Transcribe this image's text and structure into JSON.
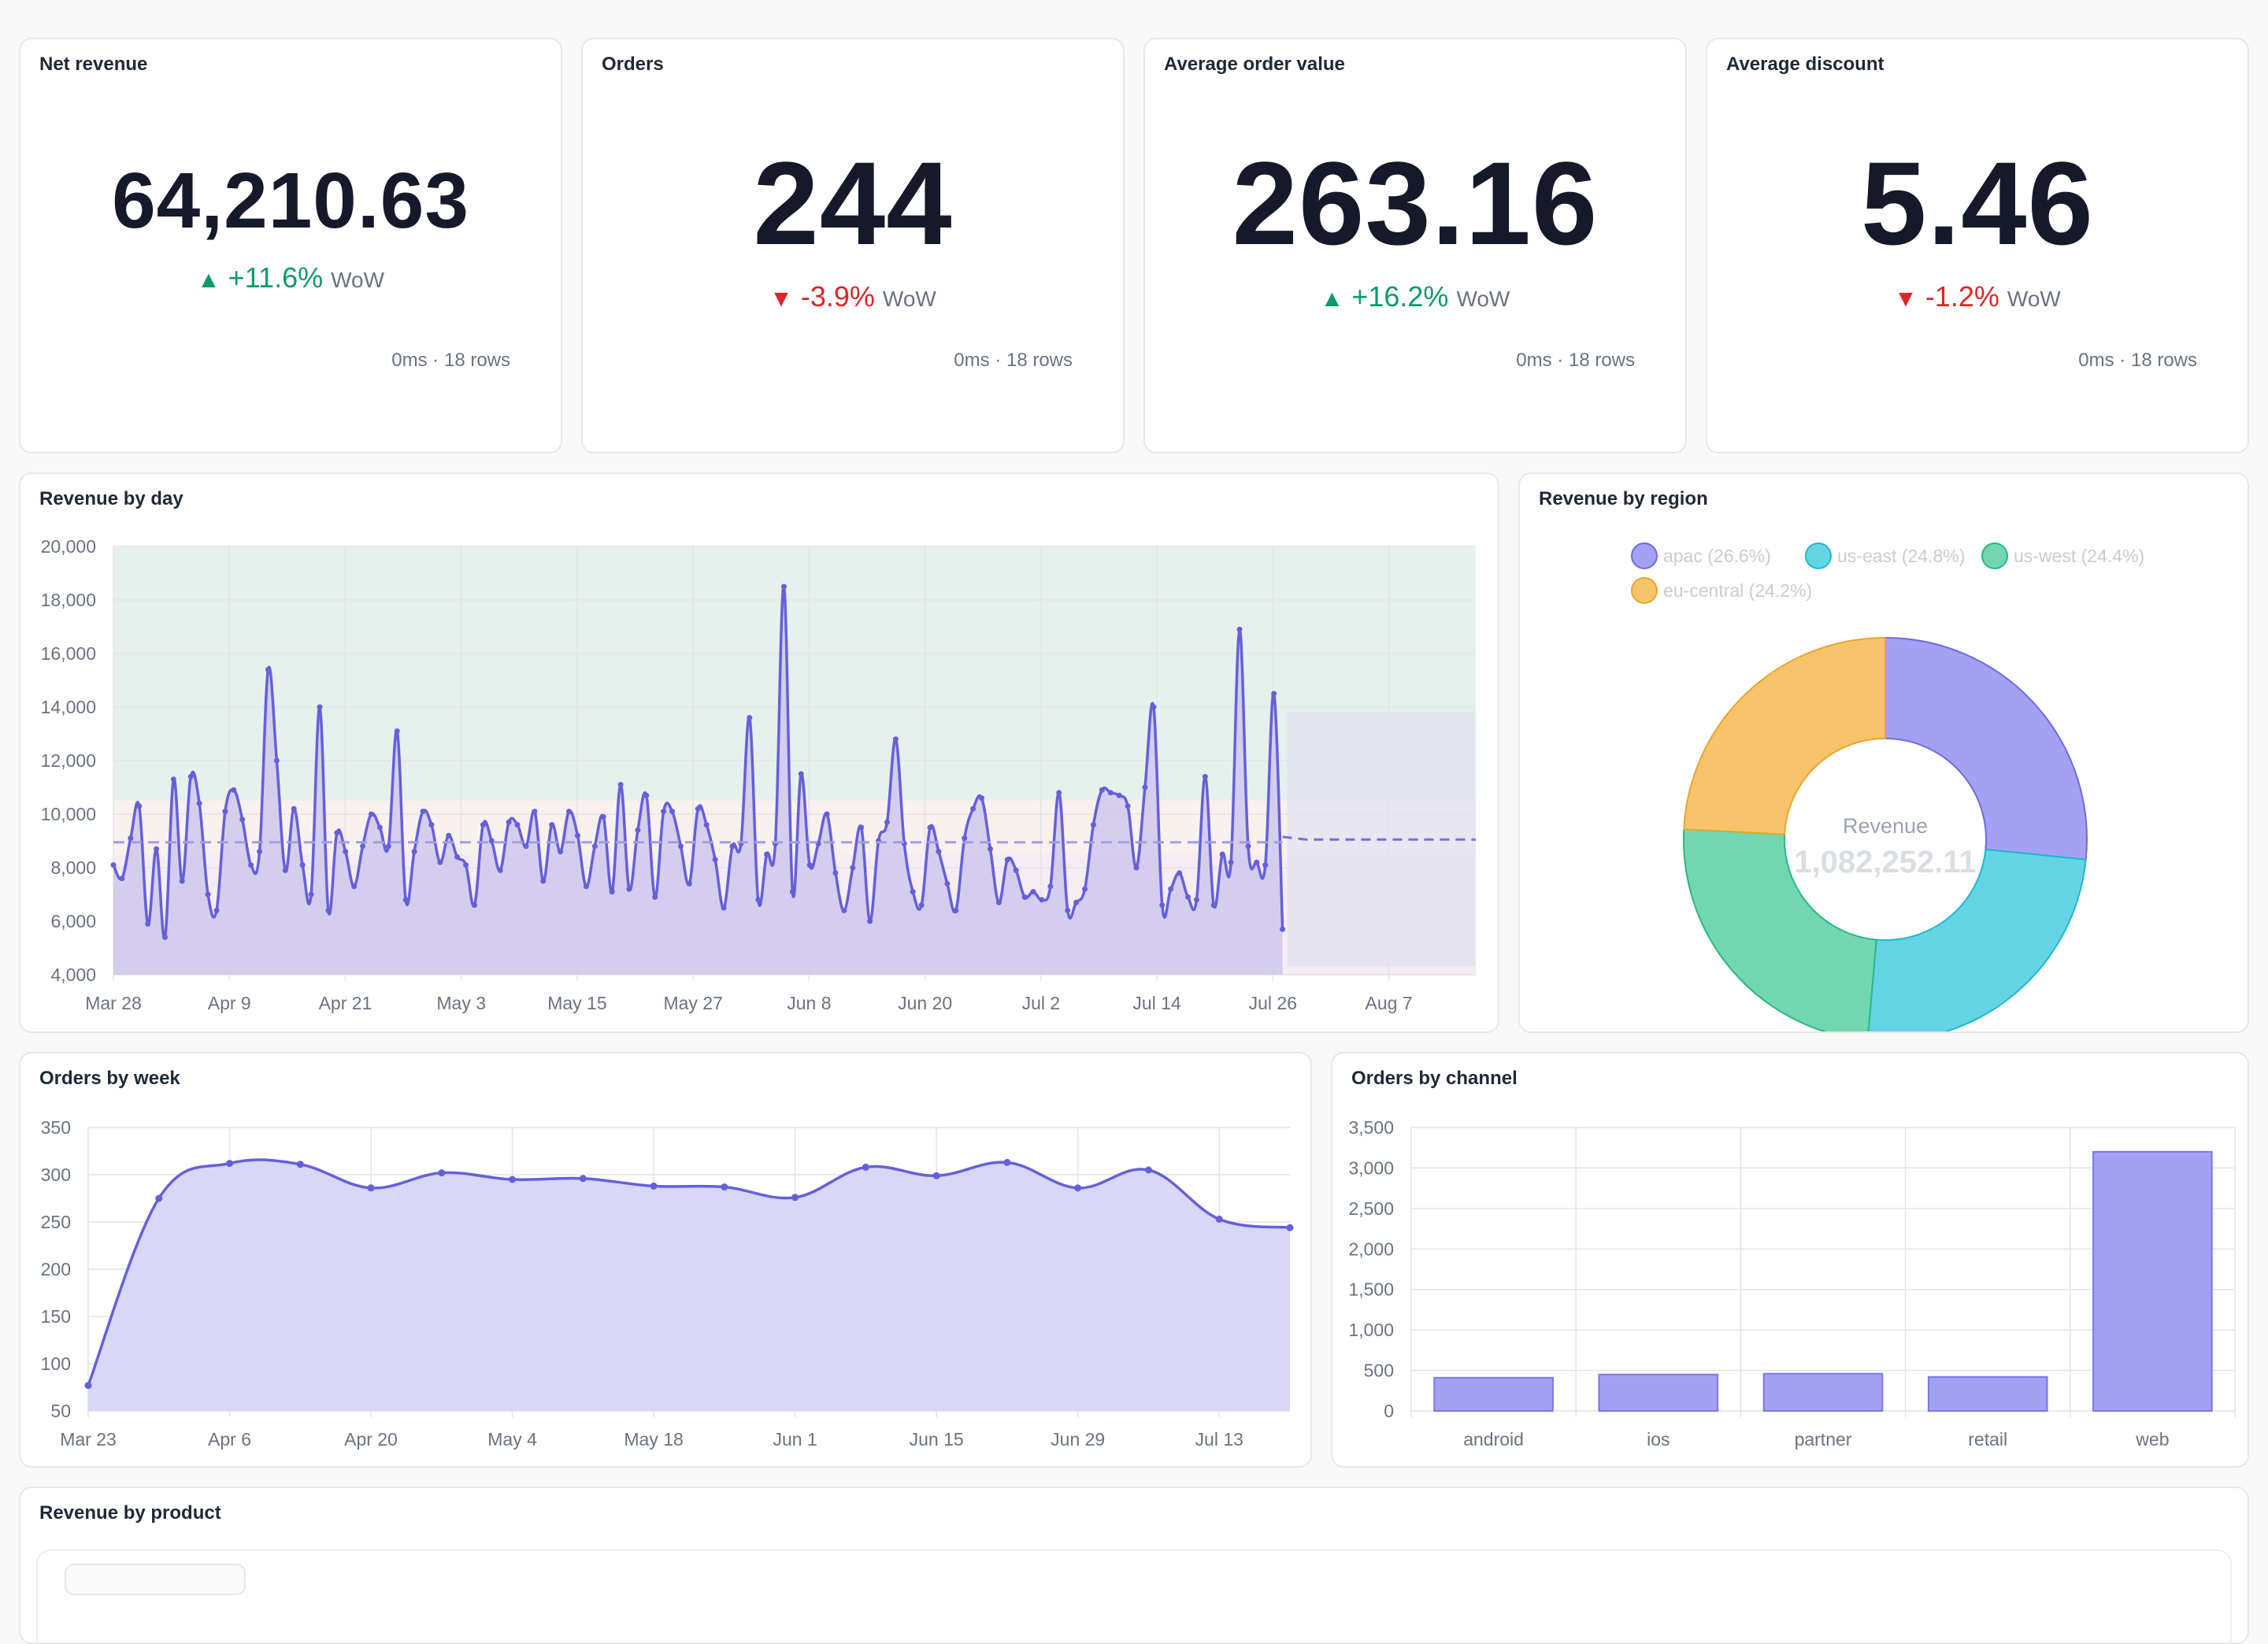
{
  "kpis": [
    {
      "title": "Net revenue",
      "value": "64,210.63",
      "direction": "up",
      "change": "+11.6%",
      "period": "WoW",
      "meta": "0ms · 18 rows"
    },
    {
      "title": "Orders",
      "value": "244",
      "direction": "down",
      "change": "-3.9%",
      "period": "WoW",
      "meta": "0ms · 18 rows"
    },
    {
      "title": "Average order value",
      "value": "263.16",
      "direction": "up",
      "change": "+16.2%",
      "period": "WoW",
      "meta": "0ms · 18 rows"
    },
    {
      "title": "Average discount",
      "value": "5.46",
      "direction": "down",
      "change": "-1.2%",
      "period": "WoW",
      "meta": "0ms · 18 rows"
    }
  ],
  "colors": {
    "accent": "#6560d9",
    "accent_fill": "#d6d5f6",
    "up": "#0f9b68",
    "down": "#dc2626",
    "apac": "#a3a1f4",
    "us_east": "#64d4e5",
    "us_west": "#72d7b0",
    "eu_central": "#f8c46b"
  },
  "chart_data": [
    {
      "id": "revenue_by_day",
      "title": "Revenue by day",
      "type": "line",
      "xlabel": "",
      "ylabel": "",
      "x_ticks": [
        "Mar 28",
        "Apr 9",
        "Apr 21",
        "May 3",
        "May 15",
        "May 27",
        "Jun 8",
        "Jun 20",
        "Jul 2",
        "Jul 14",
        "Jul 26",
        "Aug 7"
      ],
      "y_ticks": [
        "20,000",
        "18,000",
        "16,000",
        "14,000",
        "12,000",
        "10,000",
        "8,000",
        "6,000",
        "4,000"
      ],
      "ylim": [
        4000,
        20000
      ],
      "xlim": [
        "2024-03-28",
        "2024-08-16"
      ],
      "grid": true,
      "series": [
        {
          "x_start": "2024-03-28",
          "x_end": "2024-07-27",
          "values": [
            8100,
            7600,
            9100,
            10300,
            5900,
            8700,
            5400,
            11300,
            7500,
            11400,
            10400,
            7000,
            6400,
            10100,
            10900,
            9800,
            8100,
            8600,
            15400,
            12000,
            7900,
            10200,
            8100,
            7000,
            14000,
            6400,
            9300,
            8600,
            7300,
            8800,
            10000,
            9500,
            8800,
            13100,
            6800,
            8600,
            10100,
            9600,
            8200,
            9200,
            8400,
            8100,
            6600,
            9600,
            9000,
            7900,
            9700,
            9600,
            8800,
            10100,
            7500,
            9600,
            8600,
            10100,
            9200,
            7300,
            8800,
            9900,
            7100,
            11100,
            7200,
            9400,
            10700,
            6900,
            10100,
            10100,
            8800,
            7400,
            10200,
            9600,
            8300,
            6500,
            8800,
            8900,
            13600,
            6800,
            8500,
            8900,
            18500,
            7100,
            11500,
            8100,
            8900,
            10000,
            7800,
            6400,
            8000,
            9500,
            6000,
            9000,
            9700,
            12800,
            8900,
            7100,
            6600,
            9500,
            8600,
            7400,
            6400,
            9100,
            10200,
            10600,
            8700,
            6700,
            8300,
            7900,
            6900,
            7100,
            6800,
            7300,
            10800,
            6400,
            6700,
            7200,
            9600,
            10900,
            10800,
            10700,
            10300,
            8000,
            11000,
            14000,
            6600,
            7200,
            7800,
            6900,
            6800,
            11400,
            6600,
            8500,
            8200,
            16900,
            8800,
            8200,
            8100,
            14500,
            5700
          ]
        }
      ],
      "average": 8950,
      "forecast": {
        "x_start": "2024-07-27",
        "x_end": "2024-08-16",
        "value": 9050,
        "band_upper": 13800,
        "band_lower": 4300
      },
      "bands": [
        {
          "name": "upper",
          "from": 10500,
          "to": 20000,
          "color": "#e6f1ee"
        },
        {
          "name": "middle",
          "from": 8500,
          "to": 10500,
          "color": "#f9f1ee"
        },
        {
          "name": "lower",
          "from": 4000,
          "to": 8500,
          "color": "#f6ecf4"
        }
      ]
    },
    {
      "id": "revenue_by_region",
      "title": "Revenue by region",
      "type": "pie",
      "donut": true,
      "center_label": "Revenue",
      "center_value": "1,082,252.11",
      "legend_position": "top",
      "slices": [
        {
          "name": "apac",
          "label": "apac (26.6%)",
          "value": 26.6,
          "color": "#a3a1f4",
          "stroke": "#6e6ae0"
        },
        {
          "name": "us-east",
          "label": "us-east (24.8%)",
          "value": 24.8,
          "color": "#64d4e5",
          "stroke": "#22b7cc"
        },
        {
          "name": "us-west",
          "label": "us-west (24.4%)",
          "value": 24.4,
          "color": "#72d7b0",
          "stroke": "#28b885"
        },
        {
          "name": "eu-central",
          "label": "eu-central (24.2%)",
          "value": 24.2,
          "color": "#f8c46b",
          "stroke": "#e9a52d"
        }
      ]
    },
    {
      "id": "orders_by_week",
      "title": "Orders by week",
      "type": "area",
      "xlabel": "",
      "ylabel": "",
      "x_ticks": [
        "Mar 23",
        "Apr 6",
        "Apr 20",
        "May 4",
        "May 18",
        "Jun 1",
        "Jun 15",
        "Jun 29",
        "Jul 13"
      ],
      "y_ticks": [
        "350",
        "300",
        "250",
        "200",
        "150",
        "100",
        "50"
      ],
      "ylim": [
        50,
        350
      ],
      "grid": true,
      "x_start": "2024-03-23",
      "x_step_days": 7,
      "values": [
        77,
        275,
        312,
        311,
        286,
        302,
        295,
        296,
        288,
        287,
        276,
        308,
        299,
        313,
        286,
        305,
        253,
        244
      ]
    },
    {
      "id": "orders_by_channel",
      "title": "Orders by channel",
      "type": "bar",
      "xlabel": "",
      "ylabel": "",
      "categories": [
        "android",
        "ios",
        "partner",
        "retail",
        "web"
      ],
      "values": [
        410,
        450,
        460,
        420,
        3200
      ],
      "y_ticks": [
        "3,500",
        "3,000",
        "2,500",
        "2,000",
        "1,500",
        "1,000",
        "500",
        "0"
      ],
      "ylim": [
        0,
        3500
      ],
      "grid": true
    }
  ],
  "product_card": {
    "title": "Revenue by product"
  }
}
